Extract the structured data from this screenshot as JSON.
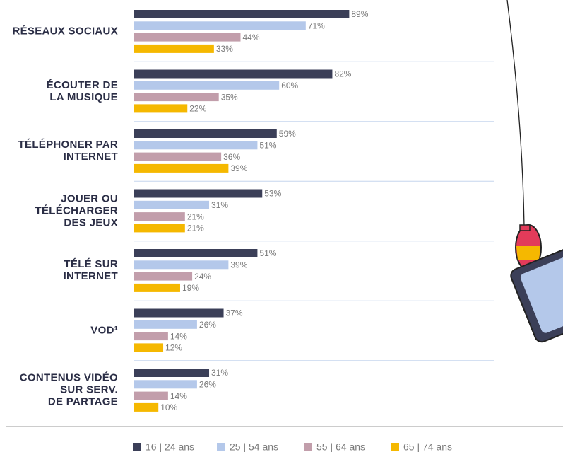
{
  "chart_data": {
    "type": "bar",
    "orientation": "horizontal",
    "categories": [
      "RÉSEAUX SOCIAUX",
      "ÉCOUTER DE\nLA MUSIQUE",
      "TÉLÉPHONER PAR\nINTERNET",
      "JOUER OU\nTÉLÉCHARGER\nDES JEUX",
      "TÉLÉ SUR\nINTERNET",
      "VOD¹",
      "CONTENUS VIDÉO\nSUR SERV.\nDE PARTAGE"
    ],
    "series": [
      {
        "name": "16 | 24 ans",
        "color": "#3b3f58",
        "values": [
          89,
          82,
          59,
          53,
          51,
          37,
          31
        ],
        "value_labels": [
          "89%",
          "82%",
          "59%",
          "53%",
          "51%",
          "37%",
          "31%"
        ]
      },
      {
        "name": "25 | 54 ans",
        "color": "#b4c8ea",
        "values": [
          71,
          60,
          51,
          31,
          39,
          26,
          26
        ],
        "value_labels": [
          "71%",
          "60%",
          "51%",
          "31%",
          "39%",
          "26%",
          "26%"
        ]
      },
      {
        "name": "55 | 64 ans",
        "color": "#c29eab",
        "values": [
          44,
          35,
          36,
          21,
          24,
          14,
          14
        ],
        "value_labels": [
          "44%",
          "35%",
          "36%",
          "21%",
          "24%",
          "14%",
          "14%"
        ]
      },
      {
        "name": "65 | 74 ans",
        "color": "#f5b800",
        "values": [
          33,
          22,
          39,
          21,
          19,
          12,
          10
        ],
        "value_labels": [
          "33%",
          "22%",
          "39%",
          "21%",
          "19%",
          "12%",
          "10%"
        ]
      }
    ]
  }
}
